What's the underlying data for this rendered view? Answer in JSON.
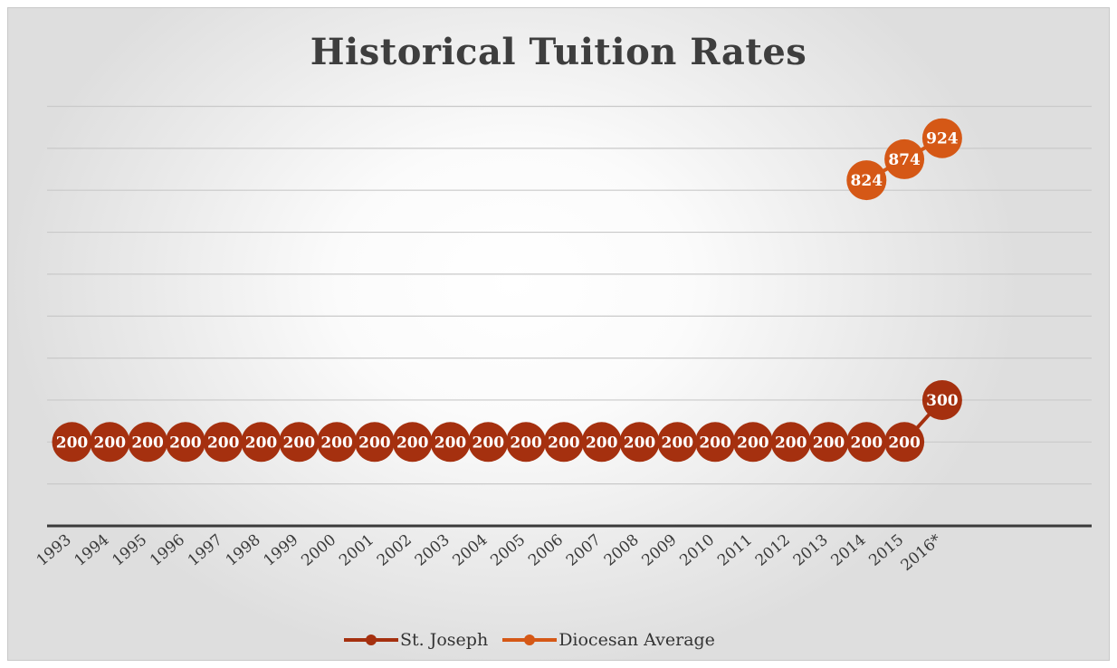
{
  "chart_data": {
    "type": "line",
    "title": "Historical Tuition Rates",
    "categories": [
      "1993",
      "1994",
      "1995",
      "1996",
      "1997",
      "1998",
      "1999",
      "2000",
      "2001",
      "2002",
      "2003",
      "2004",
      "2005",
      "2006",
      "2007",
      "2008",
      "2009",
      "2010",
      "2011",
      "2012",
      "2013",
      "2014",
      "2015",
      "2016*"
    ],
    "series": [
      {
        "name": "St. Joseph",
        "color": "#A5300F",
        "values": [
          200,
          200,
          200,
          200,
          200,
          200,
          200,
          200,
          200,
          200,
          200,
          200,
          200,
          200,
          200,
          200,
          200,
          200,
          200,
          200,
          200,
          200,
          200,
          300
        ]
      },
      {
        "name": "Diocesan Average",
        "color": "#D55816",
        "values": [
          null,
          null,
          null,
          null,
          null,
          null,
          null,
          null,
          null,
          null,
          null,
          null,
          null,
          null,
          null,
          null,
          null,
          null,
          null,
          null,
          null,
          824,
          874,
          924
        ]
      }
    ],
    "data_labels": true,
    "grid": true,
    "legend_position": "bottom"
  }
}
